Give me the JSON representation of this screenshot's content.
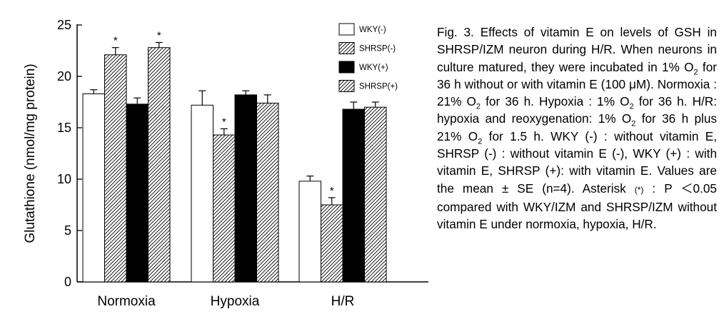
{
  "chart_data": {
    "type": "bar",
    "categories": [
      "Normoxia",
      "Hypoxia",
      "H/R"
    ],
    "ylabel": "Glutathione (nmol/mg protein)",
    "ylim": [
      0,
      25
    ],
    "yticks": [
      0,
      5,
      10,
      15,
      20,
      25
    ],
    "grid": false,
    "legend_position": "top-right",
    "series": [
      {
        "name": "WKY(-)",
        "fill": "white",
        "values": [
          18.3,
          17.2,
          9.8
        ],
        "errors": [
          0.4,
          1.4,
          0.5
        ],
        "significant": [
          false,
          false,
          false
        ]
      },
      {
        "name": "SHRSP(-)",
        "fill": "hatched",
        "values": [
          22.1,
          14.3,
          7.5
        ],
        "errors": [
          0.7,
          0.6,
          0.7
        ],
        "significant": [
          true,
          true,
          true
        ]
      },
      {
        "name": "WKY(+)",
        "fill": "black",
        "values": [
          17.3,
          18.2,
          16.8
        ],
        "errors": [
          0.6,
          0.4,
          0.7
        ],
        "significant": [
          false,
          false,
          false
        ]
      },
      {
        "name": "SHRSP(+)",
        "fill": "hatched",
        "values": [
          22.8,
          17.4,
          17.0
        ],
        "errors": [
          0.5,
          0.8,
          0.5
        ],
        "significant": [
          true,
          false,
          false
        ]
      }
    ],
    "significance_marker": "*"
  },
  "caption": {
    "s1": "Fig. 3.   Effects of vitamin E on levels of GSH in SHRSP/IZM neuron during H/R. When neurons in culture matured, they were incubated in 1% O",
    "o2": "2",
    "s2": " for 36 h without or with vitamin E (100 μM). Normoxia : 21% O",
    "s3": " for 36 h. Hypoxia : 1% O",
    "s4": " for 36 h. H/R: hypoxia and reoxygenation: 1% O",
    "s5": " for 36 h plus 21% O",
    "s6": " for 1.5 h. WKY (-) : without vitamin E, SHRSP (-) : without vitamin E (-), WKY (+) : with vitamin E, SHRSP (+): with vitamin E. Values are the mean ± SE (n=4). Asterisk ",
    "star": "(*)",
    "s7": " : P ＜0.05 compared with WKY/IZM and SHRSP/IZM without vitamin E under normoxia, hypoxia, H/R."
  }
}
